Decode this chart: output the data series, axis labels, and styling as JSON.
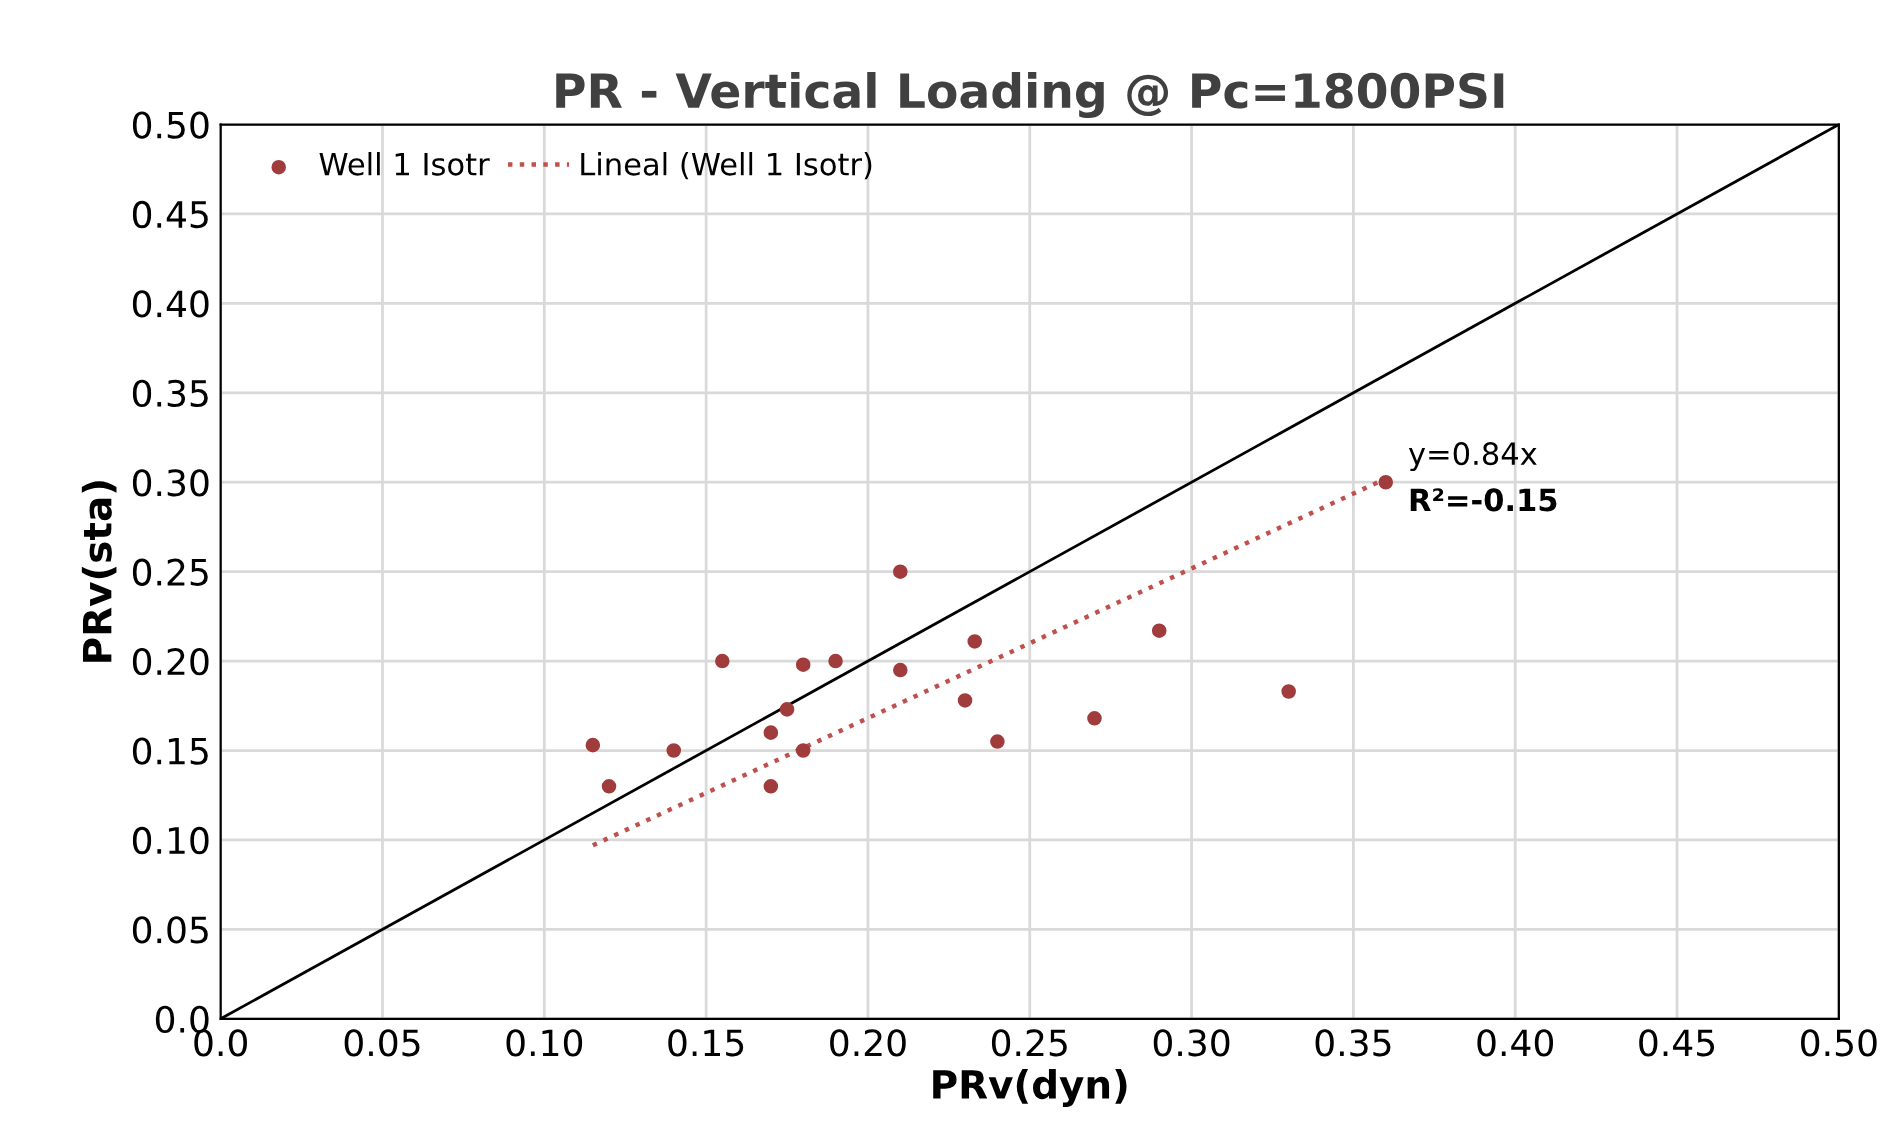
{
  "chart_data": {
    "type": "scatter",
    "title": "PR - Vertical Loading @ Pc=1800PSI",
    "xlabel": "PRv(dyn)",
    "ylabel": "PRv(sta)",
    "series": [
      {
        "name": "Well 1 Isotr",
        "color": "#a03c3c",
        "marker": "circle",
        "x": [
          0.115,
          0.12,
          0.14,
          0.155,
          0.17,
          0.17,
          0.175,
          0.18,
          0.18,
          0.19,
          0.21,
          0.21,
          0.23,
          0.233,
          0.24,
          0.27,
          0.29,
          0.33,
          0.36
        ],
        "values": [
          0.153,
          0.13,
          0.15,
          0.2,
          0.16,
          0.13,
          0.173,
          0.198,
          0.15,
          0.2,
          0.25,
          0.195,
          0.178,
          0.211,
          0.155,
          0.168,
          0.217,
          0.183,
          0.3
        ]
      },
      {
        "name": "Lineal (Well 1 Isotr)",
        "type": "line",
        "color": "#c0504d",
        "line_style": "dotted",
        "x": [
          0.115,
          0.36
        ],
        "values": [
          0.097,
          0.302
        ]
      },
      {
        "type": "line",
        "color": "#000000",
        "line_style": "solid",
        "x": [
          0,
          0.5
        ],
        "values": [
          0,
          0.5
        ]
      }
    ],
    "annotations": [
      {
        "text": "y=0.84x",
        "x": 0.36,
        "y": 0.3
      },
      {
        "text": "R²=-0.15",
        "x": 0.36,
        "y": 0.3
      }
    ],
    "xlim": [
      0,
      0.5
    ],
    "ylim": [
      0,
      0.5
    ],
    "xticks": [
      {
        "value": 0,
        "label": "0.0"
      },
      0.05,
      {
        "value": 0.1,
        "label": "0.10"
      },
      0.15,
      {
        "value": 0.2,
        "label": "0.20"
      },
      0.25,
      {
        "value": 0.3,
        "label": "0.30"
      },
      0.35,
      {
        "value": 0.4,
        "label": "0.40"
      },
      0.45,
      {
        "value": 0.5,
        "label": "0.50"
      }
    ],
    "yticks": [
      {
        "value": 0,
        "label": "0.0"
      },
      0.05,
      {
        "value": 0.1,
        "label": "0.10"
      },
      0.15,
      {
        "value": 0.2,
        "label": "0.20"
      },
      0.25,
      {
        "value": 0.3,
        "label": "0.30"
      },
      0.35,
      {
        "value": 0.4,
        "label": "0.40"
      },
      0.45,
      {
        "value": 0.5,
        "label": "0.50"
      }
    ],
    "grid": true,
    "legend": "top left"
  }
}
